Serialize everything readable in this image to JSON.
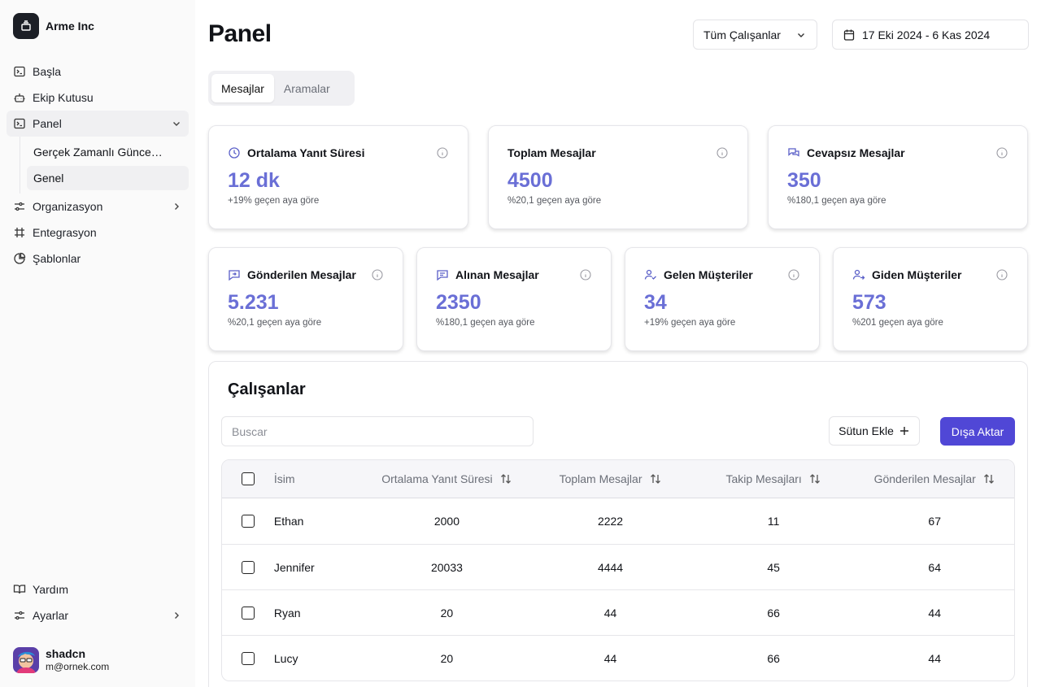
{
  "brand": {
    "name": "Arme Inc"
  },
  "nav": {
    "items": [
      {
        "label": "Başla",
        "icon": "terminal-icon"
      },
      {
        "label": "Ekip Kutusu",
        "icon": "bot-icon"
      },
      {
        "label": "Panel",
        "icon": "terminal-icon"
      },
      {
        "label": "Organizasyon",
        "icon": "settings-sliders-icon"
      },
      {
        "label": "Entegrasyon",
        "icon": "hash-icon"
      },
      {
        "label": "Şablonlar",
        "icon": "pie-chart-icon"
      }
    ],
    "panel_sub": [
      {
        "label": "Gerçek Zamanlı Güncellemeler"
      },
      {
        "label": "Genel"
      }
    ],
    "bottom": [
      {
        "label": "Yardım",
        "icon": "book-icon"
      },
      {
        "label": "Ayarlar",
        "icon": "settings-sliders-icon"
      }
    ]
  },
  "user": {
    "name": "shadcn",
    "email": "m@ornek.com"
  },
  "header": {
    "title": "Panel",
    "employee_select": "Tüm Çalışanlar",
    "date_range": "17 Eki 2024 - 6 Kas 2024"
  },
  "tabs": [
    {
      "label": "Mesajlar"
    },
    {
      "label": "Aramalar"
    }
  ],
  "stats": [
    {
      "title": "Ortalama Yanıt Süresi",
      "value": "12 dk",
      "change": "+19%",
      "note": "geçen aya göre"
    },
    {
      "title": "Toplam Mesajlar",
      "value": "4500",
      "change": "%20,1",
      "note": "geçen aya göre"
    },
    {
      "title": "Cevapsız Mesajlar",
      "value": "350",
      "change": "%180,1",
      "note": "geçen aya göre"
    },
    {
      "title": "Gönderilen Mesajlar",
      "value": "5.231",
      "change": "%20,1",
      "note": "geçen aya göre"
    },
    {
      "title": "Alınan Mesajlar",
      "value": "2350",
      "change": "%180,1",
      "note": "geçen aya göre"
    },
    {
      "title": "Gelen Müşteriler",
      "value": "34",
      "change": "+19%",
      "note": "geçen aya göre"
    },
    {
      "title": "Giden Müşteriler",
      "value": "573",
      "change": "%201",
      "note": "geçen aya göre"
    }
  ],
  "employees": {
    "title": "Çalışanlar",
    "search_placeholder": "Buscar",
    "add_column": "Sütun Ekle",
    "export": "Dışa Aktar",
    "columns": [
      "İsim",
      "Ortalama Yanıt Süresi",
      "Toplam Mesajlar",
      "Takip Mesajları",
      "Gönderilen Mesajlar"
    ],
    "rows": [
      {
        "name": "Ethan",
        "avg": "2000",
        "total": "2222",
        "follow": "11",
        "sent": "67"
      },
      {
        "name": "Jennifer",
        "avg": "20033",
        "total": "4444",
        "follow": "45",
        "sent": "64"
      },
      {
        "name": "Ryan",
        "avg": "20",
        "total": "44",
        "follow": "66",
        "sent": "44"
      },
      {
        "name": "Lucy",
        "avg": "20",
        "total": "44",
        "follow": "66",
        "sent": "44"
      }
    ]
  },
  "colors": {
    "accent": "#5047d6",
    "stat_value": "#6a6fd6"
  }
}
